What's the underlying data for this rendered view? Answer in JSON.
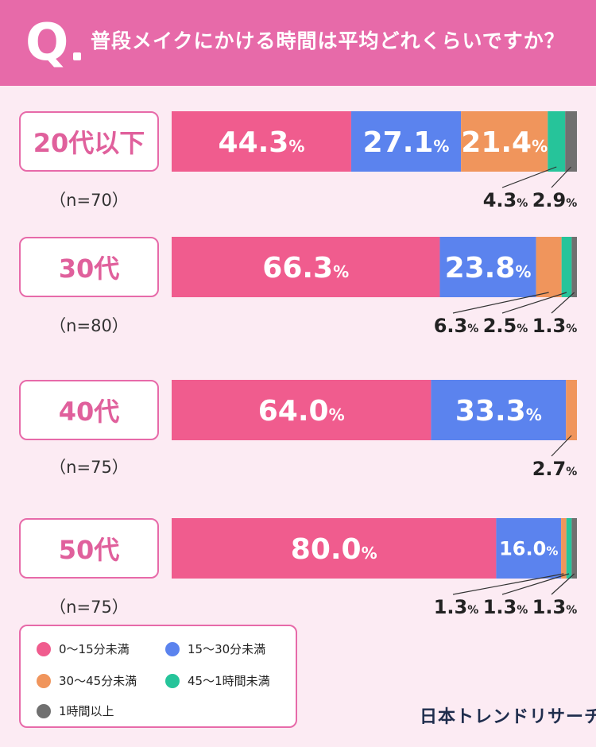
{
  "header": {
    "q_mark": "Q",
    "question": "普段メイクにかける時間は平均どれくらいですか？"
  },
  "groups": [
    {
      "label": "20代以下",
      "n": "（n=70）"
    },
    {
      "label": "30代",
      "n": "（n=80）"
    },
    {
      "label": "40代",
      "n": "（n=75）"
    },
    {
      "label": "50代",
      "n": "（n=75）"
    }
  ],
  "legend": [
    {
      "label": "0〜15分未満",
      "color": "#f05c8e"
    },
    {
      "label": "15〜30分未満",
      "color": "#5b83ee"
    },
    {
      "label": "30〜45分未満",
      "color": "#f0955c"
    },
    {
      "label": "45〜1時間未満",
      "color": "#26c49a"
    },
    {
      "label": "1時間以上",
      "color": "#707070"
    }
  ],
  "brand": "日本トレンドリサーチ",
  "chart_data": {
    "type": "bar",
    "orientation": "horizontal-stacked-100",
    "categories": [
      "20代以下",
      "30代",
      "40代",
      "50代"
    ],
    "series": [
      {
        "name": "0〜15分未満",
        "values": [
          44.3,
          66.3,
          64.0,
          80.0
        ]
      },
      {
        "name": "15〜30分未満",
        "values": [
          27.1,
          23.8,
          33.3,
          16.0
        ]
      },
      {
        "name": "30〜45分未満",
        "values": [
          21.4,
          6.3,
          2.7,
          1.3
        ]
      },
      {
        "name": "45〜1時間未満",
        "values": [
          4.3,
          2.5,
          0,
          1.3
        ]
      },
      {
        "name": "1時間以上",
        "values": [
          2.9,
          1.3,
          0,
          1.3
        ]
      }
    ],
    "unit": "%"
  }
}
